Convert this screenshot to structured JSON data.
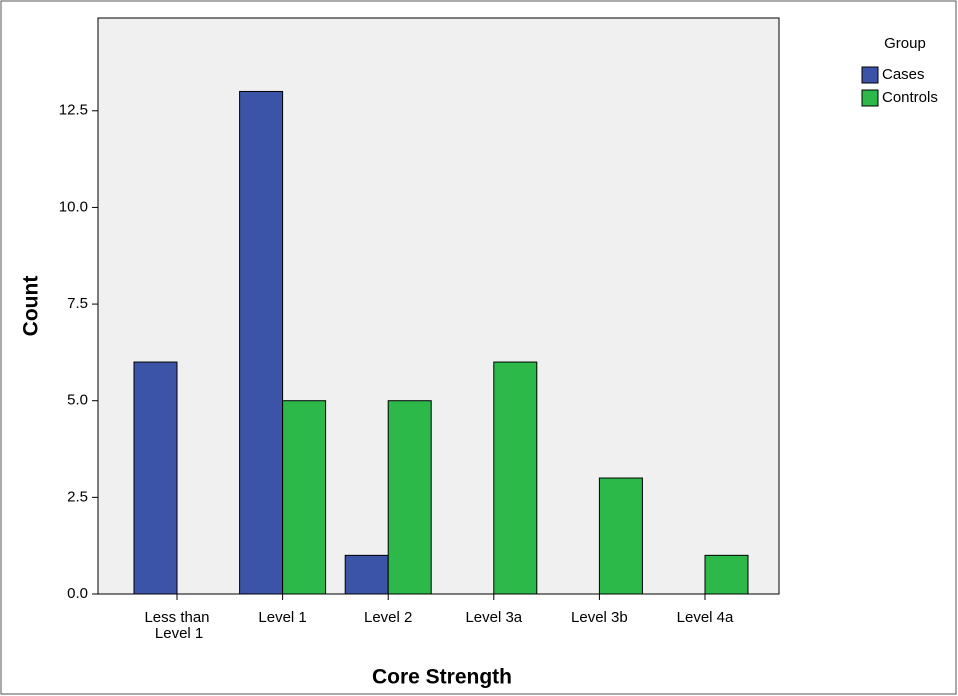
{
  "chart_data": {
    "type": "bar",
    "x_label": "Core Strength",
    "y_label": "Count",
    "categories": [
      "Less than Level 1",
      "Level 1",
      "Level 2",
      "Level 3a",
      "Level 3b",
      "Level 4a"
    ],
    "legend_title": "Group",
    "series": [
      {
        "name": "Cases",
        "color": "#3b54a8",
        "values": [
          6,
          13,
          1,
          0,
          0,
          0
        ]
      },
      {
        "name": "Controls",
        "color": "#2db84a",
        "values": [
          0,
          5,
          5,
          6,
          3,
          1
        ]
      }
    ],
    "ylim": [
      0,
      14.9
    ],
    "yticks": [
      {
        "value": 0,
        "label": "0.0"
      },
      2.5,
      {
        "value": 5,
        "label": "5.0"
      },
      7.5,
      {
        "value": 10,
        "label": "10.0"
      },
      12.5
    ],
    "legend": "right"
  }
}
